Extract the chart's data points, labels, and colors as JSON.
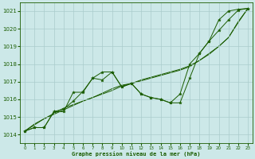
{
  "x": [
    0,
    1,
    2,
    3,
    4,
    5,
    6,
    7,
    8,
    9,
    10,
    11,
    12,
    13,
    14,
    15,
    16,
    17,
    18,
    19,
    20,
    21,
    22,
    23
  ],
  "series_wavy": [
    1014.2,
    1014.4,
    1014.4,
    1015.3,
    1015.3,
    1016.4,
    1016.4,
    1017.2,
    1017.55,
    1017.55,
    1016.7,
    1016.9,
    1016.3,
    1016.1,
    1016.0,
    1015.8,
    1015.8,
    1017.2,
    1018.6,
    1019.3,
    1019.9,
    1020.5,
    1021.05,
    1021.15
  ],
  "series_wavy2": [
    1014.2,
    1014.4,
    1014.4,
    1015.3,
    1015.45,
    1015.9,
    1016.45,
    1017.2,
    1017.1,
    1017.55,
    1016.7,
    1016.9,
    1016.3,
    1016.1,
    1016.0,
    1015.8,
    1016.3,
    1018.0,
    1018.6,
    1019.3,
    1020.5,
    1021.0,
    1021.1,
    1021.15
  ],
  "series_straight1": [
    1014.2,
    1014.6,
    1014.9,
    1015.2,
    1015.5,
    1015.7,
    1015.9,
    1016.1,
    1016.35,
    1016.6,
    1016.8,
    1016.9,
    1017.1,
    1017.25,
    1017.4,
    1017.55,
    1017.7,
    1017.9,
    1018.2,
    1018.6,
    1019.0,
    1019.5,
    1020.4,
    1021.15
  ],
  "series_straight2": [
    1014.2,
    1014.55,
    1014.9,
    1015.15,
    1015.4,
    1015.65,
    1015.9,
    1016.1,
    1016.3,
    1016.5,
    1016.75,
    1016.9,
    1017.05,
    1017.2,
    1017.35,
    1017.5,
    1017.65,
    1017.85,
    1018.2,
    1018.55,
    1019.0,
    1019.5,
    1020.35,
    1021.15
  ],
  "line_color": "#1a5c00",
  "marker_color": "#1a5c00",
  "bg_color": "#cce8e8",
  "grid_color": "#aacccc",
  "xlabel": "Graphe pression niveau de la mer (hPa)",
  "ylim": [
    1013.5,
    1021.5
  ],
  "yticks": [
    1014,
    1015,
    1016,
    1017,
    1018,
    1019,
    1020,
    1021
  ],
  "xticks": [
    0,
    1,
    2,
    3,
    4,
    5,
    6,
    7,
    8,
    9,
    10,
    11,
    12,
    13,
    14,
    15,
    16,
    17,
    18,
    19,
    20,
    21,
    22,
    23
  ],
  "figsize": [
    3.2,
    2.0
  ],
  "dpi": 100
}
